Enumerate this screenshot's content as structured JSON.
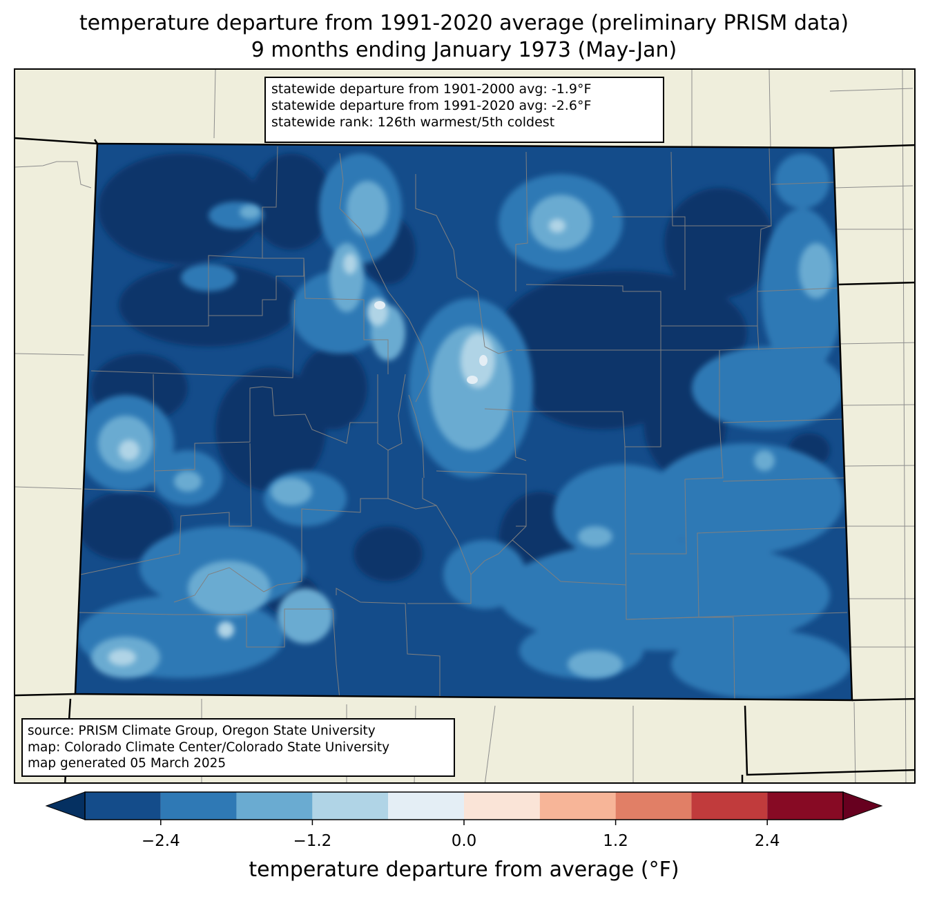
{
  "title": {
    "line1": "temperature departure from 1991-2020 average (preliminary PRISM data)",
    "line2": "9 months ending January 1973 (May-Jan)"
  },
  "stats": {
    "line1": "statewide departure from 1901-2000 avg: -1.9°F",
    "line2": "statewide departure from 1991-2020 avg: -2.6°F",
    "line3": "statewide rank: 126th warmest/5th coldest"
  },
  "source": {
    "line1": "source: PRISM Climate Group, Oregon State University",
    "line2": "map: Colorado Climate Center/Colorado State University",
    "line3": "map generated 05 March 2025"
  },
  "colorbar": {
    "label": "temperature departure from average (°F)",
    "ticks": [
      "−2.4",
      "−1.2",
      "0.0",
      "1.2",
      "2.4"
    ],
    "tick_values": [
      -2.4,
      -1.2,
      0.0,
      1.2,
      2.4
    ],
    "bins": [
      -3.0,
      -2.4,
      -1.8,
      -1.2,
      -0.6,
      0.0,
      0.6,
      1.2,
      1.8,
      2.4,
      3.0
    ],
    "colors": [
      "#144c8a",
      "#2f79b5",
      "#6aabd1",
      "#b0d4e6",
      "#e4eef5",
      "#fae4d7",
      "#f7b598",
      "#e17f66",
      "#c13b3c",
      "#870a24"
    ],
    "under_color": "#053061",
    "over_color": "#67001f"
  },
  "map": {
    "land_color": "#efeedc",
    "border_color": "#000000",
    "county_line_color": "#808080"
  }
}
